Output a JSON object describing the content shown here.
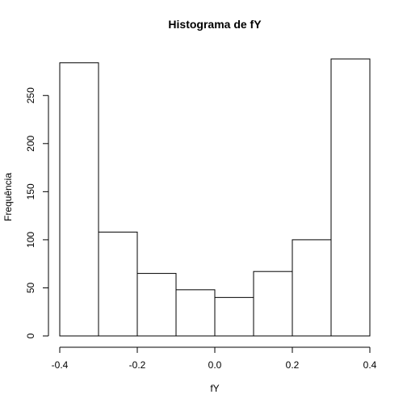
{
  "chart_data": {
    "type": "bar",
    "title": "Histograma de fY",
    "xlabel": "fY",
    "ylabel": "Frequência",
    "bins": [
      {
        "from": -0.4,
        "to": -0.3,
        "count": 284
      },
      {
        "from": -0.3,
        "to": -0.2,
        "count": 108
      },
      {
        "from": -0.2,
        "to": -0.1,
        "count": 65
      },
      {
        "from": -0.1,
        "to": 0.0,
        "count": 48
      },
      {
        "from": 0.0,
        "to": 0.1,
        "count": 40
      },
      {
        "from": 0.1,
        "to": 0.2,
        "count": 67
      },
      {
        "from": 0.2,
        "to": 0.3,
        "count": 100
      },
      {
        "from": 0.3,
        "to": 0.4,
        "count": 288
      }
    ],
    "xlim": [
      -0.4,
      0.4
    ],
    "ylim": [
      0,
      288
    ],
    "x_ticks": [
      -0.4,
      -0.2,
      0.0,
      0.2,
      0.4
    ],
    "x_tick_labels": [
      "-0.4",
      "-0.2",
      "0.0",
      "0.2",
      "0.4"
    ],
    "y_ticks": [
      0,
      50,
      100,
      150,
      200,
      250
    ],
    "y_tick_labels": [
      "0",
      "50",
      "100",
      "150",
      "200",
      "250"
    ],
    "grid": false,
    "bar_fill": "#ffffff",
    "bar_stroke": "#000000"
  }
}
